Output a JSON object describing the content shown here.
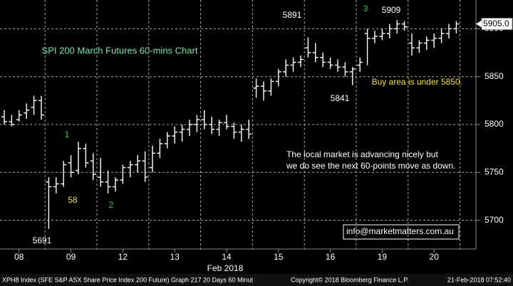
{
  "chart_data": {
    "type": "ohlc",
    "title": "SPI 200 March Futures 60-mins Chart",
    "x_label": "Feb 2018",
    "categories": [
      null,
      null,
      "08",
      null,
      null,
      null,
      null,
      null,
      null,
      "09",
      null,
      null,
      null,
      null,
      null,
      null,
      "12",
      null,
      null,
      null,
      null,
      null,
      null,
      "13",
      null,
      null,
      null,
      null,
      null,
      null,
      "14",
      null,
      null,
      null,
      null,
      null,
      null,
      "15",
      null,
      null,
      null,
      null,
      null,
      null,
      "16",
      null,
      null,
      null,
      null,
      null,
      null,
      "19",
      null,
      null,
      null,
      null,
      null,
      null,
      "20",
      null,
      null,
      null
    ],
    "open": [
      5808,
      5803,
      5805,
      5812,
      5818,
      5825,
      5740,
      5735,
      5738,
      5760,
      5752,
      5775,
      5762,
      5745,
      5740,
      5735,
      5742,
      5755,
      5758,
      5762,
      5755,
      5770,
      5780,
      5788,
      5792,
      5795,
      5800,
      5805,
      5800,
      5795,
      5802,
      5798,
      5792,
      5795,
      5838,
      5840,
      5835,
      5845,
      5855,
      5862,
      5865,
      5880,
      5875,
      5870,
      5865,
      5862,
      5860,
      5855,
      5862,
      5895,
      5890,
      5892,
      5895,
      5900,
      5905,
      5885,
      5880,
      5885,
      5888,
      5890,
      5895,
      5900
    ],
    "high": [
      5815,
      5810,
      5815,
      5822,
      5830,
      5830,
      5745,
      5745,
      5762,
      5768,
      5782,
      5780,
      5770,
      5765,
      5752,
      5745,
      5758,
      5762,
      5768,
      5772,
      5778,
      5785,
      5792,
      5798,
      5800,
      5805,
      5810,
      5815,
      5808,
      5805,
      5810,
      5802,
      5800,
      5805,
      5848,
      5845,
      5848,
      5858,
      5868,
      5870,
      5872,
      5891,
      5885,
      5875,
      5870,
      5868,
      5865,
      5860,
      5870,
      5900,
      5898,
      5900,
      5905,
      5909,
      5908,
      5895,
      5888,
      5892,
      5895,
      5900,
      5905,
      5908
    ],
    "low": [
      5800,
      5798,
      5803,
      5806,
      5810,
      5805,
      5691,
      5728,
      5735,
      5745,
      5748,
      5755,
      5742,
      5735,
      5728,
      5730,
      5738,
      5745,
      5750,
      5740,
      5750,
      5765,
      5775,
      5780,
      5782,
      5788,
      5792,
      5795,
      5790,
      5788,
      5795,
      5785,
      5782,
      5785,
      5828,
      5825,
      5830,
      5840,
      5850,
      5855,
      5860,
      5870,
      5865,
      5860,
      5858,
      5855,
      5850,
      5841,
      5855,
      5862,
      5885,
      5888,
      5890,
      5895,
      5898,
      5872,
      5875,
      5878,
      5880,
      5885,
      5890,
      5895
    ],
    "close": [
      5803,
      5800,
      5810,
      5815,
      5825,
      5810,
      5735,
      5738,
      5758,
      5750,
      5775,
      5760,
      5748,
      5740,
      5735,
      5742,
      5755,
      5758,
      5762,
      5745,
      5770,
      5780,
      5788,
      5792,
      5795,
      5800,
      5805,
      5800,
      5795,
      5802,
      5798,
      5792,
      5795,
      5790,
      5840,
      5835,
      5845,
      5855,
      5862,
      5865,
      5868,
      5875,
      5870,
      5865,
      5862,
      5860,
      5855,
      5858,
      5865,
      5890,
      5892,
      5895,
      5900,
      5905,
      5902,
      5880,
      5885,
      5888,
      5890,
      5895,
      5900,
      5905
    ],
    "color": "#ffffff",
    "ylim": [
      5670,
      5930
    ],
    "yticks": [
      5700,
      5750,
      5800,
      5850,
      5900
    ],
    "grid": true,
    "last_price": {
      "value": 5905,
      "label": "5905.0"
    },
    "annotations": [
      {
        "text": "5691",
        "color": "#ffffff"
      },
      {
        "text": "58",
        "color": "#f0e23c"
      },
      {
        "text": "1",
        "color": "#2ecc40"
      },
      {
        "text": "2",
        "color": "#2ecc40"
      },
      {
        "text": "5891",
        "color": "#ffffff"
      },
      {
        "text": "3",
        "color": "#2ecc40"
      },
      {
        "text": "5909",
        "color": "#ffffff"
      },
      {
        "text": "5841",
        "color": "#ffffff"
      },
      {
        "text": "Buy area is under 5850.",
        "color": "#f0e23c"
      },
      {
        "text": "The local market is advancing nicely but",
        "color": "#ffffff"
      },
      {
        "text": "we do see the next 60-points move as down.",
        "color": "#ffffff"
      },
      {
        "text": "info@marketmatters.com.au",
        "color": "#ffffff"
      }
    ]
  },
  "footer": {
    "left": "XPH8 Index (SFE S&P ASX Share Price Index 200 Future) Graph 217 20 Days 60 Minut",
    "center": "Copyright© 2018 Bloomberg Finance L.P.",
    "right": "21-Feb-2018 07:52:40"
  }
}
